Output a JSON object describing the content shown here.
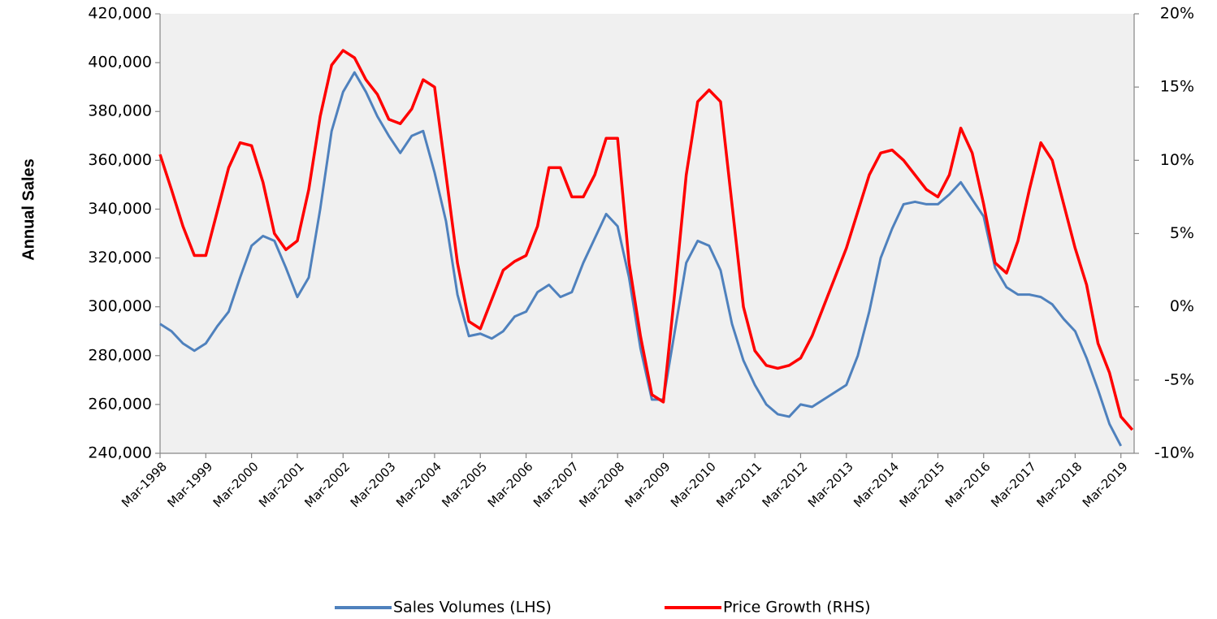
{
  "chart_data": {
    "type": "line",
    "y_label": "Annual Sales",
    "categories": [
      "Mar-1998",
      null,
      null,
      null,
      "Mar-1999",
      null,
      null,
      null,
      "Mar-2000",
      null,
      null,
      null,
      "Mar-2001",
      null,
      null,
      null,
      "Mar-2002",
      null,
      null,
      null,
      "Mar-2003",
      null,
      null,
      null,
      "Mar-2004",
      null,
      null,
      null,
      "Mar-2005",
      null,
      null,
      null,
      "Mar-2006",
      null,
      null,
      null,
      "Mar-2007",
      null,
      null,
      null,
      "Mar-2008",
      null,
      null,
      null,
      "Mar-2009",
      null,
      null,
      null,
      "Mar-2010",
      null,
      null,
      null,
      "Mar-2011",
      null,
      null,
      null,
      "Mar-2012",
      null,
      null,
      null,
      "Mar-2013",
      null,
      null,
      null,
      "Mar-2014",
      null,
      null,
      null,
      "Mar-2015",
      null,
      null,
      null,
      "Mar-2016",
      null,
      null,
      null,
      "Mar-2017",
      null,
      null,
      null,
      "Mar-2018",
      null,
      null,
      null,
      "Mar-2019",
      null
    ],
    "series": [
      {
        "name": "Sales Volumes (LHS)",
        "color": "#4f81bd",
        "axis": "y",
        "values": [
          293000,
          290000,
          285000,
          282000,
          285000,
          292000,
          298000,
          312000,
          325000,
          329000,
          327000,
          316000,
          304000,
          312000,
          340000,
          372000,
          388000,
          396000,
          388000,
          378000,
          370000,
          363000,
          370000,
          372000,
          355000,
          335000,
          305000,
          288000,
          289000,
          287000,
          290000,
          296000,
          298000,
          306000,
          309000,
          304000,
          306000,
          318000,
          328000,
          338000,
          333000,
          312000,
          283000,
          262000,
          262000,
          290000,
          318000,
          327000,
          325000,
          315000,
          293000,
          278000,
          268000,
          260000,
          256000,
          255000,
          260000,
          259000,
          262000,
          265000,
          268000,
          280000,
          298000,
          320000,
          332000,
          342000,
          343000,
          342000,
          342000,
          346000,
          351000,
          344000,
          337000,
          316000,
          308000,
          305000,
          305000,
          304000,
          301000,
          295000,
          290000,
          279000,
          266000,
          252000,
          243000,
          null
        ]
      },
      {
        "name": "Price Growth (RHS)",
        "color": "#ff0000",
        "axis": "y2",
        "values": [
          10.4,
          8,
          5.5,
          3.5,
          3.5,
          6.5,
          9.5,
          11.2,
          11,
          8.5,
          5,
          3.9,
          4.5,
          8,
          13,
          16.5,
          17.5,
          17,
          15.5,
          14.5,
          12.8,
          12.5,
          13.5,
          15.5,
          15,
          9,
          3,
          -1,
          -1.5,
          0.5,
          2.5,
          3.1,
          3.5,
          5.5,
          9.5,
          9.5,
          7.5,
          7.5,
          9,
          11.5,
          11.5,
          3,
          -2,
          -6,
          -6.5,
          1,
          9,
          14,
          14.8,
          14,
          7,
          0,
          -3,
          -4,
          -4.2,
          -4,
          -3.5,
          -2,
          0,
          2,
          4,
          6.5,
          9,
          10.5,
          10.7,
          10,
          9,
          8,
          7.5,
          9,
          12.2,
          10.5,
          7,
          3,
          2.3,
          4.5,
          8,
          11.2,
          10,
          7,
          4,
          1.5,
          -2.5,
          -4.5,
          -7.5,
          -8.4
        ]
      }
    ],
    "ylim": [
      240000,
      420000
    ],
    "yticks": [
      {
        "value": 240000,
        "label": "240,000"
      },
      {
        "value": 260000,
        "label": "260,000"
      },
      {
        "value": 280000,
        "label": "280,000"
      },
      {
        "value": 300000,
        "label": "300,000"
      },
      {
        "value": 320000,
        "label": "320,000"
      },
      {
        "value": 340000,
        "label": "340,000"
      },
      {
        "value": 360000,
        "label": "360,000"
      },
      {
        "value": 380000,
        "label": "380,000"
      },
      {
        "value": 400000,
        "label": "400,000"
      },
      {
        "value": 420000,
        "label": "420,000"
      }
    ],
    "y2lim": [
      -10,
      20
    ],
    "y2ticks": [
      {
        "value": -10,
        "label": "-10%"
      },
      {
        "value": -5,
        "label": "-5%"
      },
      {
        "value": 0,
        "label": "0%"
      },
      {
        "value": 5,
        "label": "5%"
      },
      {
        "value": 10,
        "label": "10%"
      },
      {
        "value": 15,
        "label": "15%"
      },
      {
        "value": 20,
        "label": "20%"
      }
    ],
    "legend": "bottom"
  }
}
